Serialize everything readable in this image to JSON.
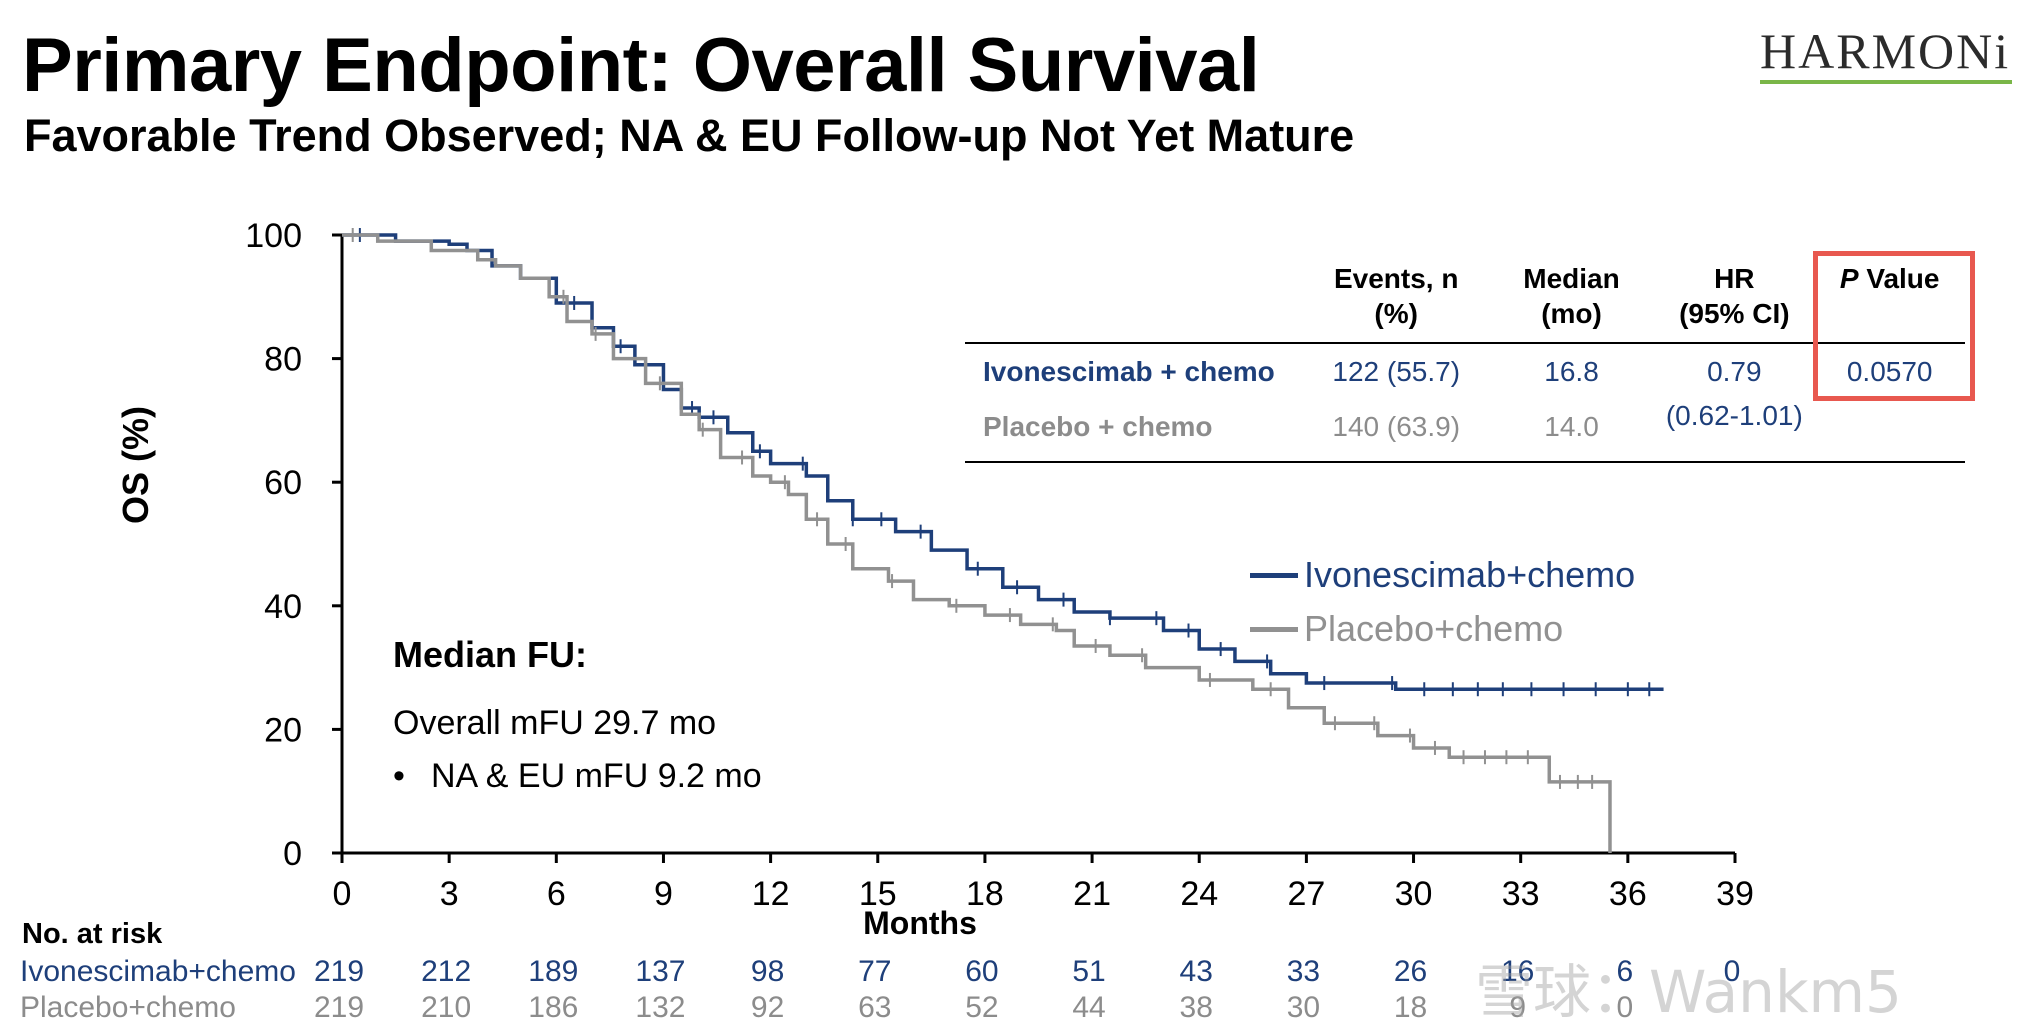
{
  "title": "Primary Endpoint: Overall Survival",
  "subtitle": "Favorable Trend Observed; NA & EU Follow-up Not Yet Mature",
  "logo": {
    "text": "HARMONi",
    "line_color": "#7ab648"
  },
  "chart_data": {
    "type": "line",
    "step": true,
    "ylabel": "OS (%)",
    "xlabel": "Months",
    "xlim": [
      0,
      39
    ],
    "ylim": [
      0,
      100
    ],
    "x_ticks": [
      "0",
      "3",
      "6",
      "9",
      "12",
      "15",
      "18",
      "21",
      "24",
      "27",
      "30",
      "33",
      "36",
      "39"
    ],
    "y_ticks": [
      "0",
      "20",
      "40",
      "60",
      "80",
      "100"
    ],
    "grid": false,
    "series": [
      {
        "name": "Ivonescimab+chemo",
        "color": "#1e3f7a",
        "points": [
          [
            0,
            100
          ],
          [
            0.5,
            100
          ],
          [
            1.5,
            99
          ],
          [
            3,
            98.5
          ],
          [
            3.5,
            97.5
          ],
          [
            4.2,
            95
          ],
          [
            5,
            93
          ],
          [
            6,
            89
          ],
          [
            7,
            85
          ],
          [
            7.6,
            82
          ],
          [
            8.2,
            79
          ],
          [
            9,
            75
          ],
          [
            9.5,
            72
          ],
          [
            10,
            70.5
          ],
          [
            10.8,
            68
          ],
          [
            11.5,
            65
          ],
          [
            12,
            63
          ],
          [
            13,
            61
          ],
          [
            13.6,
            57
          ],
          [
            14.3,
            54
          ],
          [
            15.5,
            52
          ],
          [
            16.5,
            49
          ],
          [
            17.5,
            46
          ],
          [
            18.5,
            43
          ],
          [
            19.5,
            41
          ],
          [
            20.5,
            39
          ],
          [
            21.5,
            38
          ],
          [
            23,
            36
          ],
          [
            24,
            33
          ],
          [
            25,
            31
          ],
          [
            26,
            29
          ],
          [
            27,
            27.5
          ],
          [
            29.5,
            26.5
          ],
          [
            37,
            26.5
          ]
        ],
        "censor": [
          0.5,
          6.5,
          7.8,
          9.8,
          10.4,
          11.7,
          12.9,
          14.3,
          15.1,
          16.2,
          17.8,
          18.9,
          20.2,
          21.5,
          22.8,
          23.7,
          24.6,
          25.9,
          27.5,
          29.4,
          30.3,
          31.1,
          31.8,
          32.5,
          33.3,
          34.2,
          35.1,
          36.0,
          36.6
        ]
      },
      {
        "name": "Placebo+chemo",
        "color": "#919191",
        "points": [
          [
            0,
            100
          ],
          [
            1,
            99
          ],
          [
            2.5,
            97.5
          ],
          [
            3.8,
            96
          ],
          [
            4.3,
            95
          ],
          [
            5,
            93
          ],
          [
            5.8,
            90
          ],
          [
            6.3,
            86
          ],
          [
            7,
            84
          ],
          [
            7.6,
            80
          ],
          [
            8.5,
            76
          ],
          [
            9.5,
            71
          ],
          [
            10,
            68.5
          ],
          [
            10.6,
            64
          ],
          [
            11.5,
            61
          ],
          [
            12,
            60
          ],
          [
            12.5,
            58
          ],
          [
            13,
            54
          ],
          [
            13.6,
            50
          ],
          [
            14.3,
            46
          ],
          [
            15.3,
            44
          ],
          [
            16,
            41
          ],
          [
            17,
            40
          ],
          [
            18,
            38.5
          ],
          [
            19,
            37
          ],
          [
            20,
            36
          ],
          [
            20.5,
            33.5
          ],
          [
            21.5,
            32
          ],
          [
            22.5,
            30
          ],
          [
            24,
            28
          ],
          [
            25.5,
            26.5
          ],
          [
            26.5,
            23.5
          ],
          [
            27.5,
            21
          ],
          [
            29,
            19
          ],
          [
            30,
            17
          ],
          [
            31,
            15.5
          ],
          [
            33.5,
            15.5
          ],
          [
            33.8,
            11.5
          ],
          [
            35.5,
            11.5
          ],
          [
            35.5,
            0
          ]
        ],
        "censor": [
          0.3,
          6.2,
          7.1,
          8.9,
          10.1,
          11.2,
          12.4,
          13.3,
          14.1,
          15.4,
          17.2,
          18.7,
          19.9,
          21.1,
          22.4,
          24.3,
          26.0,
          27.8,
          28.9,
          29.9,
          30.6,
          31.4,
          32.0,
          32.6,
          33.2,
          34.1,
          34.6,
          35.0
        ]
      }
    ]
  },
  "stats_table": {
    "headers": [
      "",
      "Events, n\n(%)",
      "Median\n(mo)",
      "HR\n(95% CI)",
      "P Value"
    ],
    "rows": [
      {
        "label": "Ivonescimab + chemo",
        "events": "122 (55.7)",
        "median": "16.8",
        "hr": "0.79",
        "p": "0.0570"
      },
      {
        "label": "Placebo + chemo",
        "events": "140 (63.9)",
        "median": "14.0",
        "hr": "",
        "p": ""
      }
    ],
    "hr_ci": "(0.62-1.01)"
  },
  "median_fu": {
    "title": "Median FU:",
    "line1": "Overall mFU 29.7 mo",
    "line2": "NA & EU mFU 9.2 mo"
  },
  "risk_table": {
    "title": "No. at risk",
    "rows": [
      {
        "label": "Ivonescimab+chemo",
        "color": "#1e3f7a",
        "values": [
          "219",
          "212",
          "189",
          "137",
          "98",
          "77",
          "60",
          "51",
          "43",
          "33",
          "26",
          "16",
          "6",
          "0"
        ]
      },
      {
        "label": "Placebo+chemo",
        "color": "#8c8c8c",
        "values": [
          "219",
          "210",
          "186",
          "132",
          "92",
          "63",
          "52",
          "44",
          "38",
          "30",
          "18",
          "9",
          "0"
        ]
      }
    ]
  },
  "watermark": "雪球：Wankm5"
}
